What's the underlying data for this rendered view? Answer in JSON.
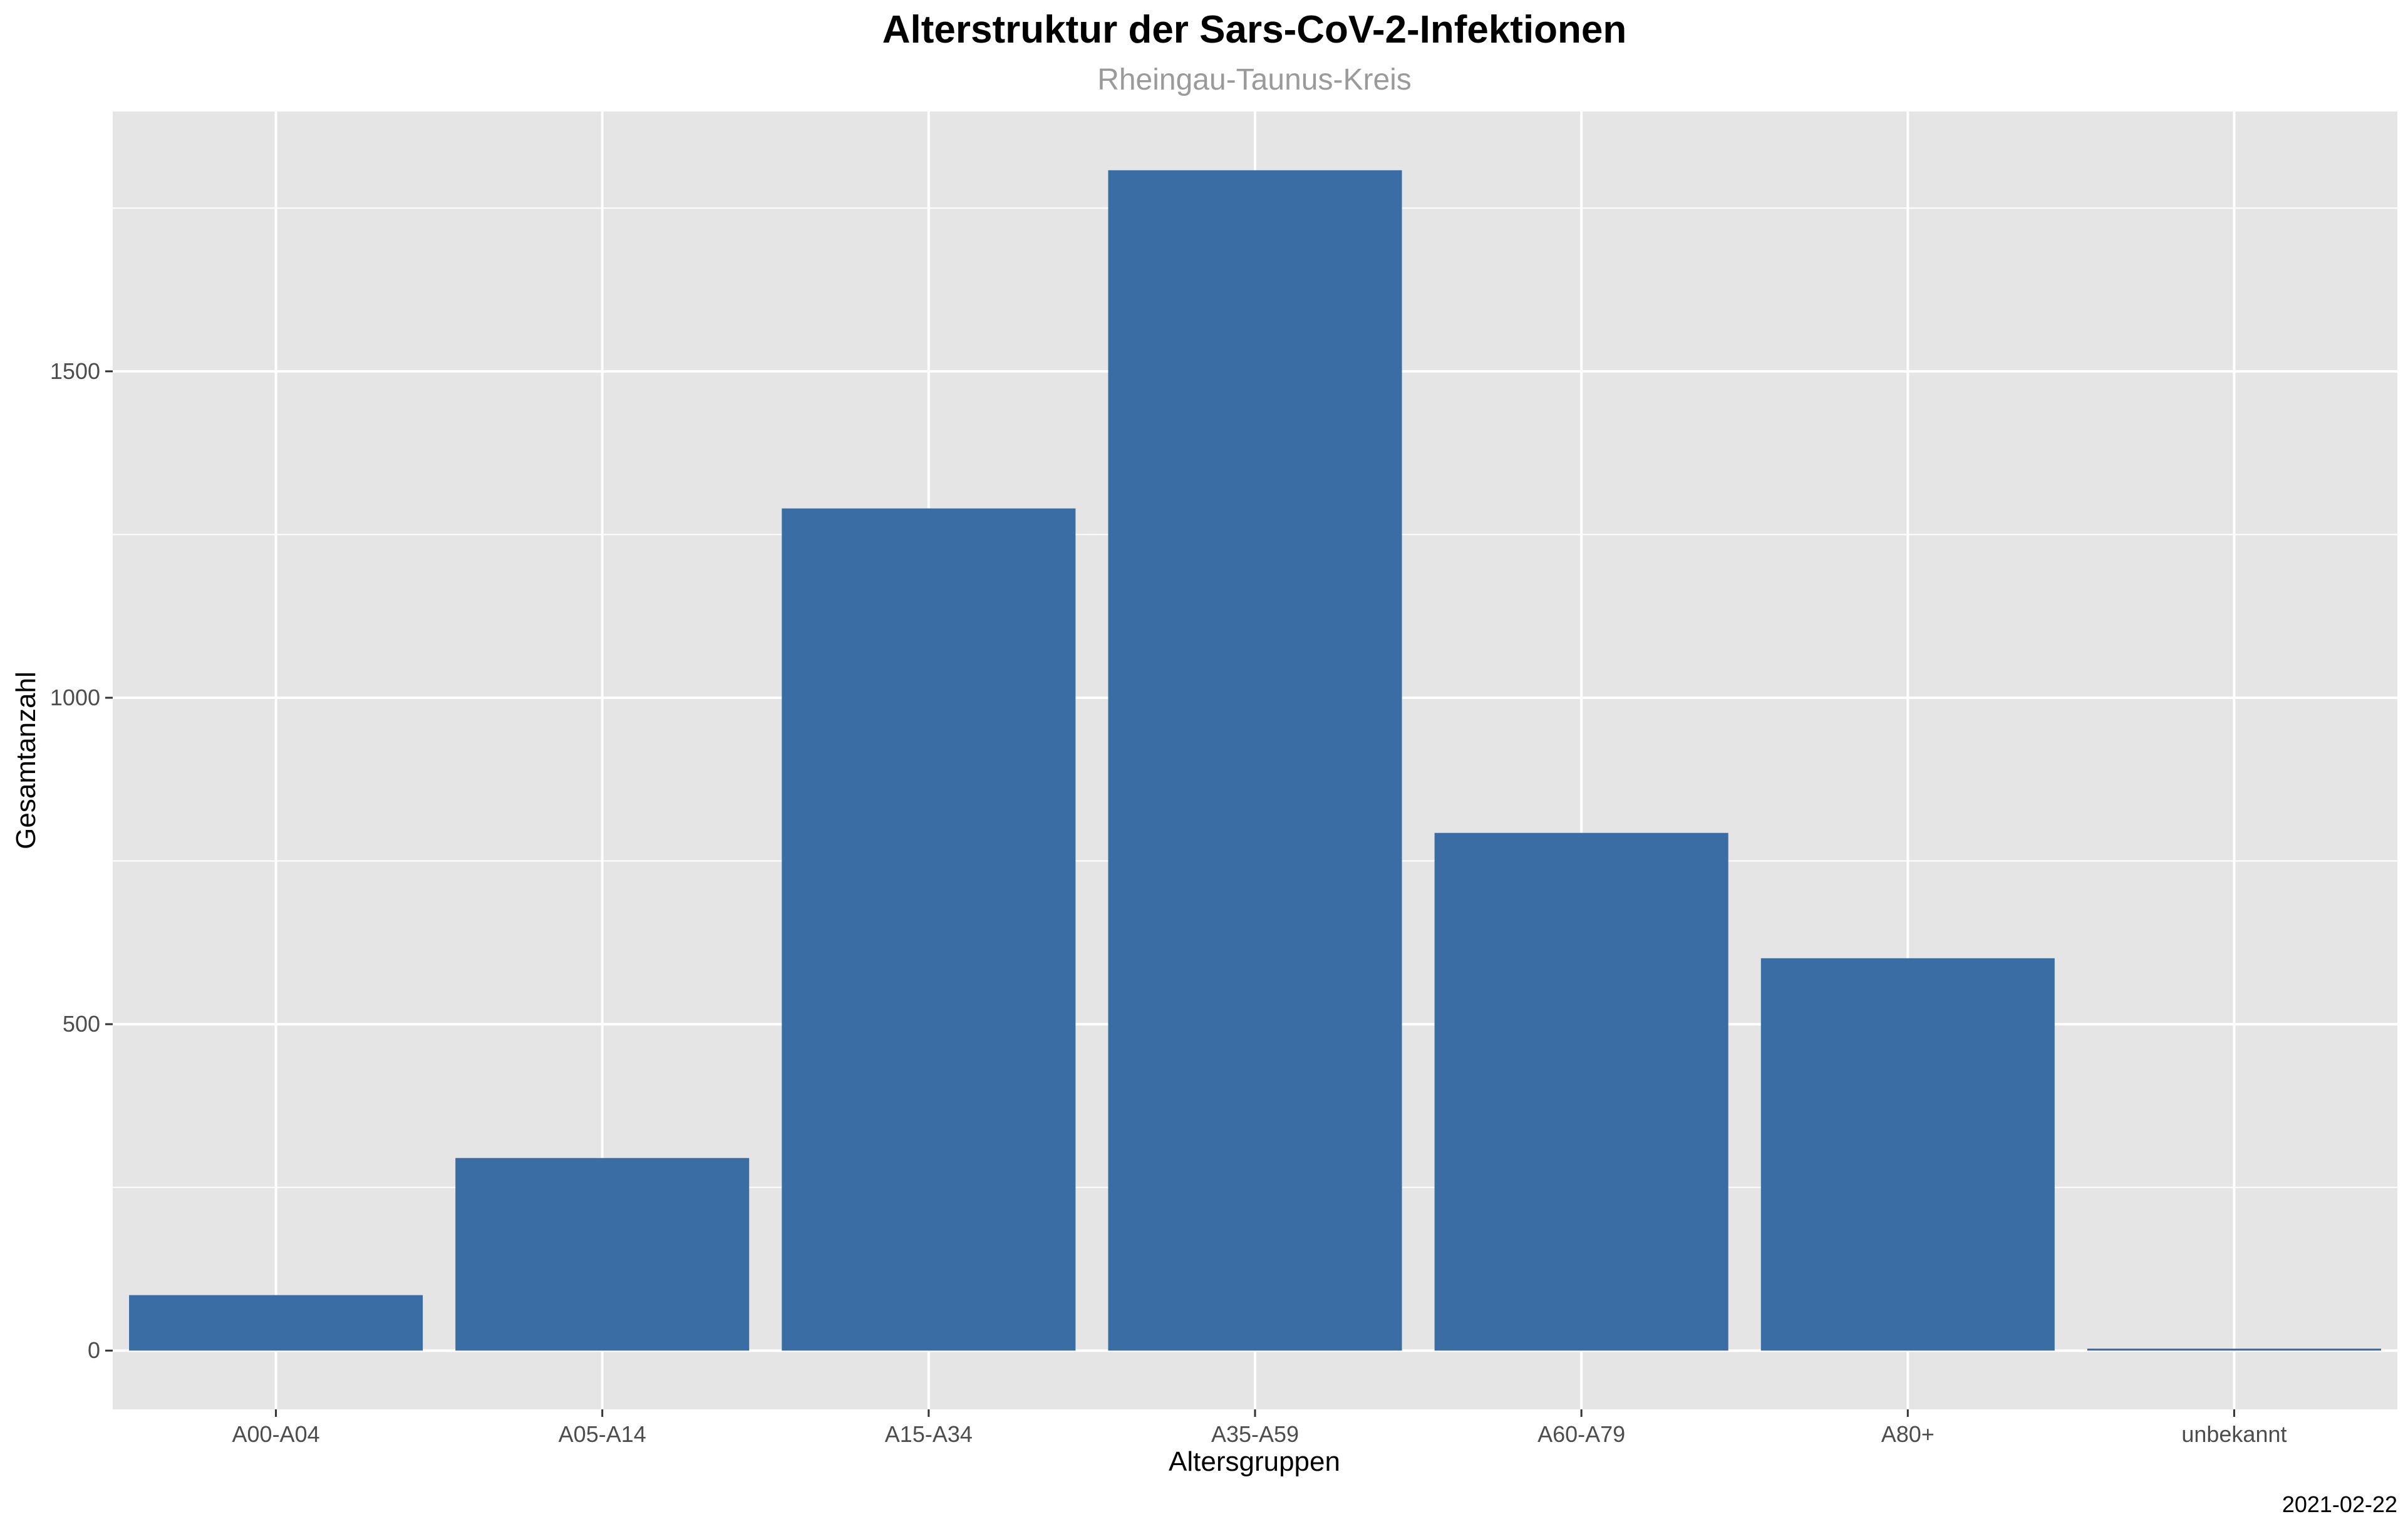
{
  "chart_data": {
    "type": "bar",
    "title": "Alterstruktur der Sars-CoV-2-Infektionen",
    "subtitle": "Rheingau-Taunus-Kreis",
    "xlabel": "Altersgruppen",
    "ylabel": "Gesamtanzahl",
    "caption": "2021-02-22",
    "categories": [
      "A00-A04",
      "A05-A14",
      "A15-A34",
      "A35-A59",
      "A60-A79",
      "A80+",
      "unbekannt"
    ],
    "values": [
      85,
      295,
      1290,
      1808,
      793,
      601,
      3
    ],
    "ylim": [
      -90,
      1898
    ],
    "yticks": [
      0,
      500,
      1000,
      1500
    ],
    "ytick_labels": [
      "0",
      "500",
      "1000",
      "1500"
    ],
    "grid": true,
    "legend": "none",
    "colors": {
      "bar": "#3a6da4",
      "panel": "#e5e5e5",
      "grid": "#ffffff"
    }
  }
}
